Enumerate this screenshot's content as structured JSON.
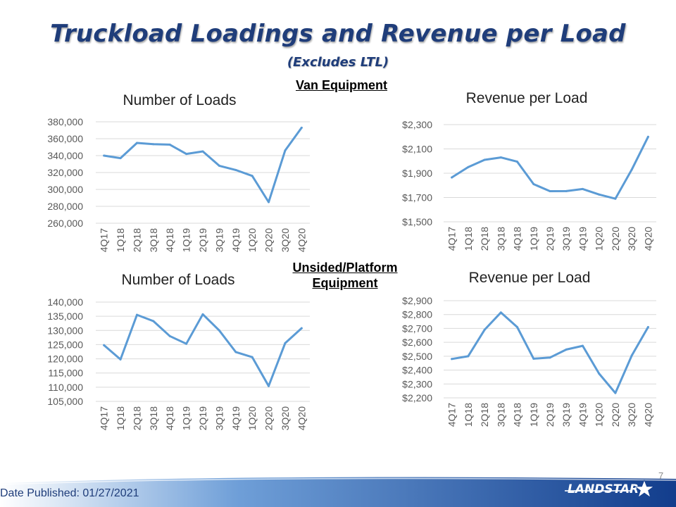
{
  "slide": {
    "title": "Truckload Loadings and Revenue per Load",
    "subtitle": "(Excludes LTL)",
    "section_van": "Van Equipment",
    "section_platform_line1": "Unsided/Platform",
    "section_platform_line2": "Equipment",
    "date_published": "Date Published:  01/27/2021",
    "page_number": "7",
    "logo_text": "LANDSTAR",
    "colors": {
      "title": "#1f3d7a",
      "series": "#5b9bd5",
      "footer": "#1f4e9a"
    }
  },
  "chart_data": [
    {
      "id": "van-loads",
      "type": "line",
      "title": "Number of Loads",
      "categories": [
        "4Q17",
        "1Q18",
        "2Q18",
        "3Q18",
        "4Q18",
        "1Q19",
        "2Q19",
        "3Q19",
        "4Q19",
        "1Q20",
        "2Q20",
        "3Q20",
        "4Q20"
      ],
      "values": [
        340000,
        337000,
        355000,
        353500,
        353000,
        342000,
        345000,
        328000,
        323000,
        316000,
        285000,
        346000,
        373000
      ],
      "ylim": [
        260000,
        380000
      ],
      "yticks": [
        "260,000",
        "280,000",
        "300,000",
        "320,000",
        "340,000",
        "360,000",
        "380,000"
      ],
      "grid": true
    },
    {
      "id": "van-rev",
      "type": "line",
      "title": "Revenue per Load",
      "categories": [
        "4Q17",
        "1Q18",
        "2Q18",
        "3Q18",
        "4Q18",
        "1Q19",
        "2Q19",
        "3Q19",
        "4Q19",
        "1Q20",
        "2Q20",
        "3Q20",
        "4Q20"
      ],
      "values": [
        1865,
        1950,
        2010,
        2030,
        1995,
        1810,
        1752,
        1753,
        1770,
        1725,
        1690,
        1930,
        2200
      ],
      "ylim": [
        1500,
        2300
      ],
      "yticks": [
        "$1,500",
        "$1,700",
        "$1,900",
        "$2,100",
        "$2,300"
      ],
      "grid": true
    },
    {
      "id": "plat-loads",
      "type": "line",
      "title": "Number of Loads",
      "categories": [
        "4Q17",
        "1Q18",
        "2Q18",
        "3Q18",
        "4Q18",
        "1Q19",
        "2Q19",
        "3Q19",
        "4Q19",
        "1Q20",
        "2Q20",
        "3Q20",
        "4Q20"
      ],
      "values": [
        124800,
        119800,
        135500,
        133300,
        128000,
        125300,
        135700,
        130000,
        122400,
        120600,
        110400,
        125500,
        130800
      ],
      "ylim": [
        105000,
        140000
      ],
      "yticks": [
        "105,000",
        "110,000",
        "115,000",
        "120,000",
        "125,000",
        "130,000",
        "135,000",
        "140,000"
      ],
      "grid": true
    },
    {
      "id": "plat-rev",
      "type": "line",
      "title": "Revenue per Load",
      "categories": [
        "4Q17",
        "1Q18",
        "2Q18",
        "3Q18",
        "4Q18",
        "1Q19",
        "2Q19",
        "3Q19",
        "4Q19",
        "1Q20",
        "2Q20",
        "3Q20",
        "4Q20"
      ],
      "values": [
        2480,
        2500,
        2690,
        2815,
        2710,
        2482,
        2490,
        2548,
        2575,
        2375,
        2235,
        2505,
        2710
      ],
      "ylim": [
        2200,
        2900
      ],
      "yticks": [
        "$2,200",
        "$2,300",
        "$2,400",
        "$2,500",
        "$2,600",
        "$2,700",
        "$2,800",
        "$2,900"
      ],
      "grid": true
    }
  ]
}
